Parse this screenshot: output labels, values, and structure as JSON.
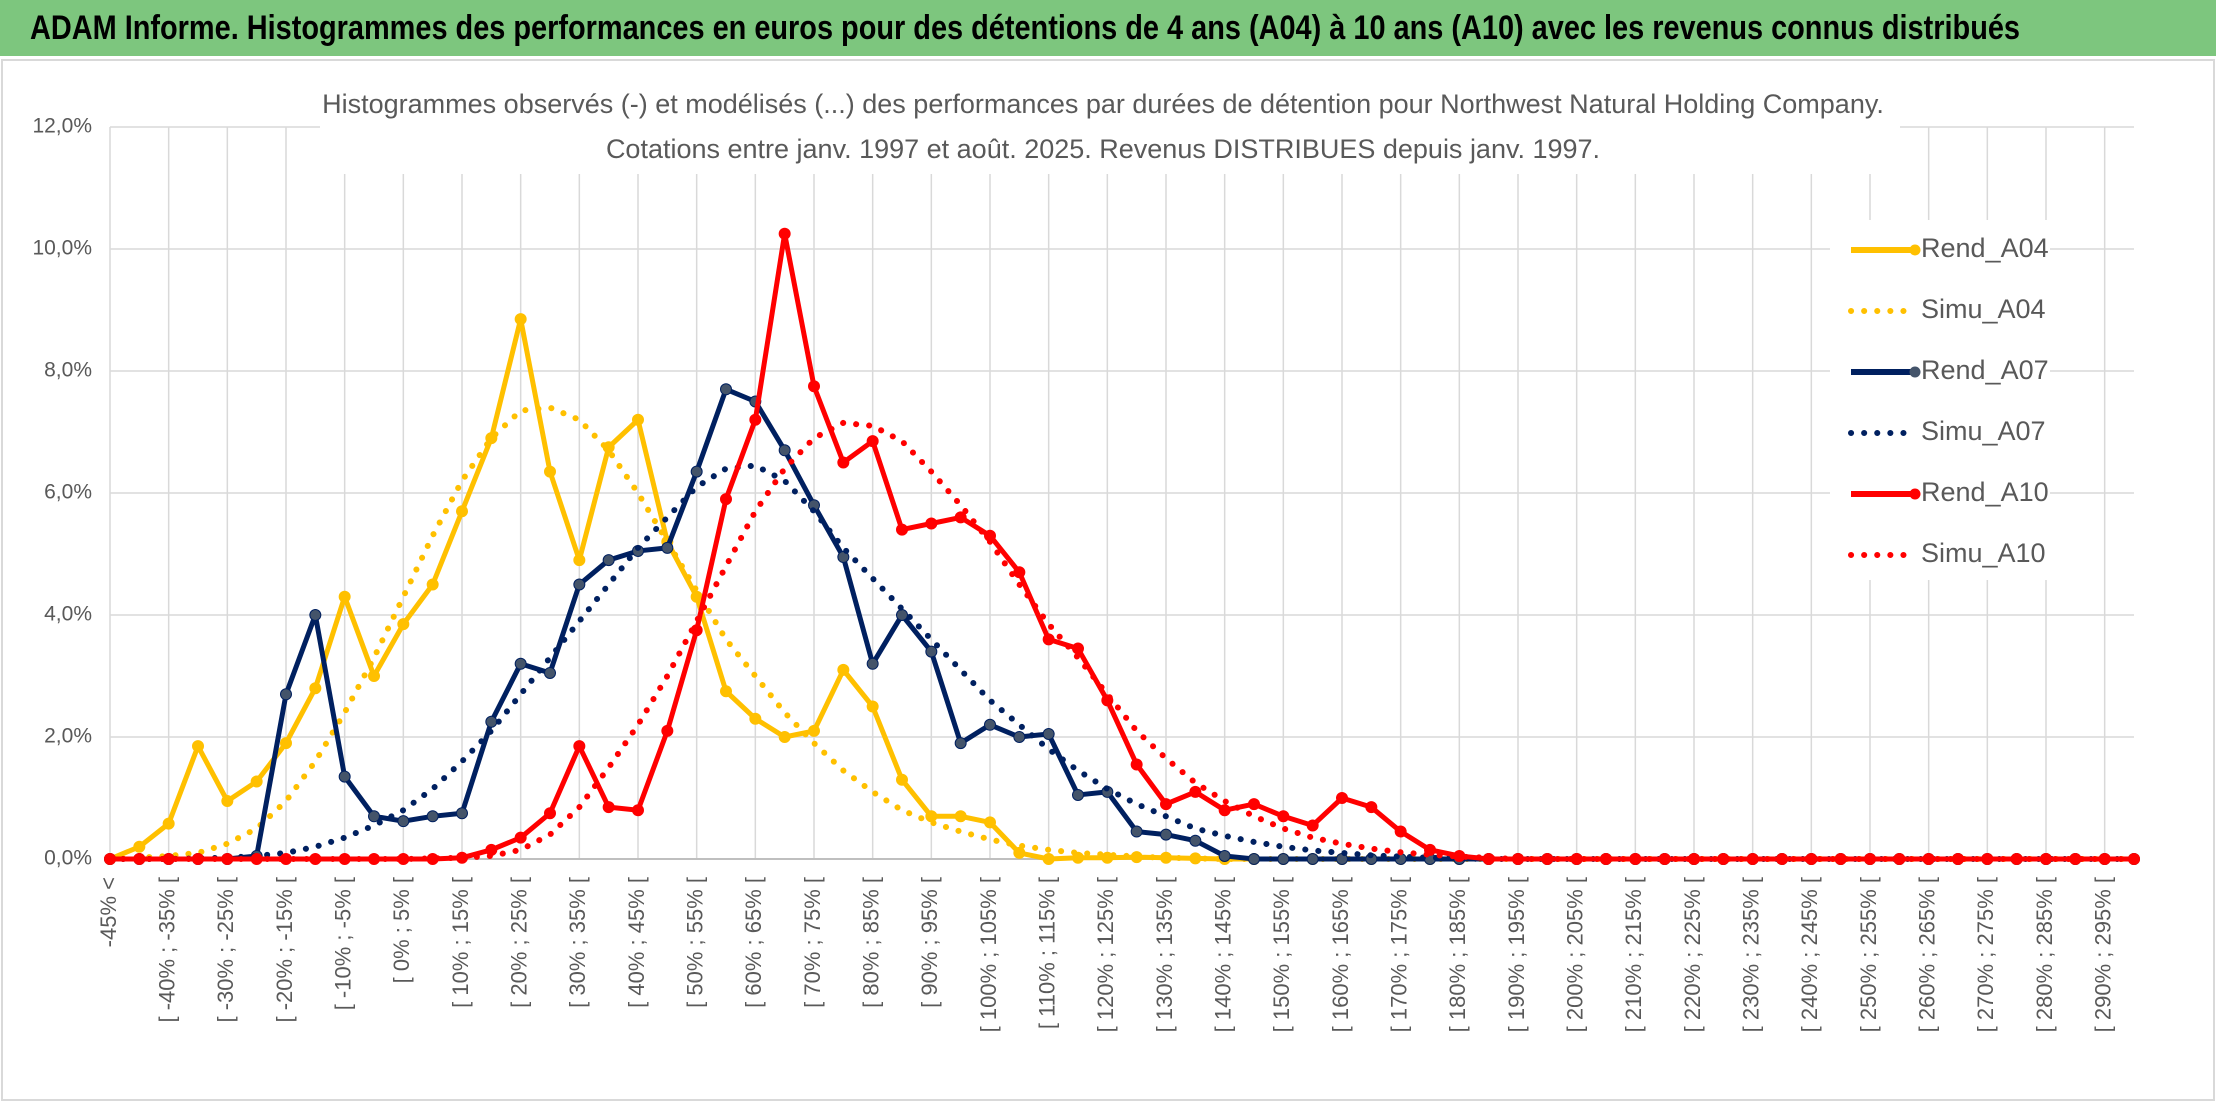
{
  "header": {
    "title": "ADAM Informe. Histogrammes des performances en euros pour des détentions de 4 ans (A04) à 10 ans (A10) avec les revenus connus distribués"
  },
  "chart_data": {
    "type": "line",
    "title": "Histogrammes observés (-) et modélisés (...) des performances par durées de détention pour Northwest Natural Holding Company.",
    "subtitle": "Cotations entre janv. 1997 et août. 2025. Revenus DISTRIBUES depuis janv. 1997.",
    "categories": [
      "-45% <",
      null,
      "[ -40% ; -35% [",
      null,
      "[ -30% ; -25% [",
      null,
      "[ -20% ; -15% [",
      null,
      "[ -10% ; -5% [",
      null,
      "[ 0% ; 5% [",
      null,
      "[ 10% ; 15% [",
      null,
      "[ 20% ; 25% [",
      null,
      "[ 30% ; 35% [",
      null,
      "[ 40% ; 45% [",
      null,
      "[ 50% ; 55% [",
      null,
      "[ 60% ; 65% [",
      null,
      "[ 70% ; 75% [",
      null,
      "[ 80% ; 85% [",
      null,
      "[ 90% ; 95% [",
      null,
      "[ 100% ; 105% [",
      null,
      "[ 110% ; 115% [",
      null,
      "[ 120% ; 125% [",
      null,
      "[ 130% ; 135% [",
      null,
      "[ 140% ; 145% [",
      null,
      "[ 150% ; 155% [",
      null,
      "[ 160% ; 165% [",
      null,
      "[ 170% ; 175% [",
      null,
      "[ 180% ; 185% [",
      null,
      "[ 190% ; 195% [",
      null,
      "[ 200% ; 205% [",
      null,
      "[ 210% ; 215% [",
      null,
      "[ 220% ; 225% [",
      null,
      "[ 230% ; 235% [",
      null,
      "[ 240% ; 245% [",
      null,
      "[ 250% ; 255% [",
      null,
      "[ 260% ; 265% [",
      null,
      "[ 270% ; 275% [",
      null,
      "[ 280% ; 285% [",
      null,
      "[ 290% ; 295% [",
      null
    ],
    "series": [
      {
        "name": "Rend_A04",
        "color": "#FFC000",
        "style": "solid",
        "values": [
          0,
          0.2,
          0.58,
          1.85,
          0.95,
          1.27,
          1.9,
          2.8,
          4.3,
          3.0,
          3.85,
          4.5,
          5.7,
          6.9,
          8.85,
          6.35,
          4.9,
          6.75,
          7.2,
          5.2,
          4.3,
          2.75,
          2.3,
          2.0,
          2.1,
          3.1,
          2.5,
          1.3,
          0.7,
          0.7,
          0.6,
          0.1,
          0,
          0.02,
          0.02,
          0.03,
          0.02,
          0.01,
          0,
          0,
          0,
          0,
          0,
          0,
          0,
          0,
          0,
          0,
          0,
          0,
          0,
          0,
          0,
          0,
          0,
          0,
          0,
          0,
          0,
          0,
          0,
          0,
          0,
          0,
          0,
          0,
          0,
          0,
          0,
          0
        ]
      },
      {
        "name": "Simu_A04",
        "color": "#FFC000",
        "style": "dotted",
        "values": [
          0,
          0.02,
          0.05,
          0.1,
          0.25,
          0.5,
          0.95,
          1.6,
          2.4,
          3.3,
          4.3,
          5.3,
          6.2,
          6.9,
          7.35,
          7.4,
          7.2,
          6.7,
          6.0,
          5.2,
          4.4,
          3.6,
          3.0,
          2.4,
          1.9,
          1.45,
          1.1,
          0.8,
          0.6,
          0.45,
          0.32,
          0.22,
          0.15,
          0.1,
          0.07,
          0.04,
          0.02,
          0.01,
          0,
          0,
          0,
          0,
          0,
          0,
          0,
          0,
          0,
          0,
          0,
          0,
          0,
          0,
          0,
          0,
          0,
          0,
          0,
          0,
          0,
          0,
          0,
          0,
          0,
          0,
          0,
          0,
          0,
          0,
          0,
          0
        ]
      },
      {
        "name": "Rend_A07",
        "color": "#002060",
        "style": "solid",
        "values": [
          0,
          0,
          0,
          0,
          0,
          0.05,
          2.7,
          4.0,
          1.35,
          0.7,
          0.62,
          0.7,
          0.75,
          2.25,
          3.2,
          3.05,
          4.5,
          4.9,
          5.05,
          5.1,
          6.35,
          7.7,
          7.5,
          6.7,
          5.8,
          4.95,
          3.2,
          4.0,
          3.4,
          1.9,
          2.2,
          2.0,
          2.05,
          1.05,
          1.1,
          0.45,
          0.4,
          0.3,
          0.05,
          0,
          0,
          0,
          0,
          0,
          0,
          0,
          0,
          0,
          0,
          0,
          0,
          0,
          0,
          0,
          0,
          0,
          0,
          0,
          0,
          0,
          0,
          0,
          0,
          0,
          0,
          0,
          0,
          0,
          0,
          0
        ]
      },
      {
        "name": "Simu_A07",
        "color": "#002060",
        "style": "dotted",
        "values": [
          0,
          0,
          0,
          0.01,
          0.02,
          0.05,
          0.1,
          0.2,
          0.35,
          0.55,
          0.8,
          1.15,
          1.6,
          2.1,
          2.7,
          3.3,
          3.9,
          4.5,
          5.1,
          5.6,
          6.1,
          6.4,
          6.45,
          6.2,
          5.7,
          5.1,
          4.6,
          4.1,
          3.6,
          3.1,
          2.6,
          2.2,
          1.8,
          1.45,
          1.15,
          0.9,
          0.7,
          0.5,
          0.38,
          0.28,
          0.2,
          0.14,
          0.1,
          0.06,
          0.04,
          0.02,
          0.01,
          0,
          0,
          0,
          0,
          0,
          0,
          0,
          0,
          0,
          0,
          0,
          0,
          0,
          0,
          0,
          0,
          0,
          0,
          0,
          0,
          0,
          0,
          0
        ]
      },
      {
        "name": "Rend_A10",
        "color": "#FF0000",
        "style": "solid",
        "values": [
          0,
          0,
          0,
          0,
          0,
          0,
          0,
          0,
          0,
          0,
          0,
          0,
          0.02,
          0.15,
          0.35,
          0.75,
          1.85,
          0.85,
          0.8,
          2.1,
          3.75,
          5.9,
          7.2,
          10.25,
          7.75,
          6.5,
          6.85,
          5.4,
          5.5,
          5.6,
          5.3,
          4.7,
          3.6,
          3.45,
          2.6,
          1.55,
          0.9,
          1.1,
          0.8,
          0.9,
          0.7,
          0.55,
          1.0,
          0.85,
          0.45,
          0.15,
          0.05,
          0,
          0,
          0,
          0,
          0,
          0,
          0,
          0,
          0,
          0,
          0,
          0,
          0,
          0,
          0,
          0,
          0,
          0,
          0,
          0,
          0,
          0,
          0
        ]
      },
      {
        "name": "Simu_A10",
        "color": "#FF0000",
        "style": "dotted",
        "values": [
          0,
          0,
          0,
          0,
          0,
          0,
          0,
          0,
          0,
          0,
          0,
          0.01,
          0.02,
          0.05,
          0.15,
          0.4,
          0.85,
          1.5,
          2.2,
          3.0,
          3.9,
          4.8,
          5.7,
          6.4,
          6.9,
          7.15,
          7.1,
          6.85,
          6.35,
          5.8,
          5.2,
          4.5,
          3.85,
          3.3,
          2.7,
          2.1,
          1.65,
          1.25,
          0.95,
          0.7,
          0.5,
          0.35,
          0.25,
          0.17,
          0.11,
          0.07,
          0.04,
          0.02,
          0,
          0,
          0,
          0,
          0,
          0,
          0,
          0,
          0,
          0,
          0,
          0,
          0,
          0,
          0,
          0,
          0,
          0,
          0,
          0,
          0,
          0
        ]
      }
    ],
    "ylim": [
      0,
      12
    ],
    "yticks": [
      {
        "value": 0,
        "label": "0,0%"
      },
      {
        "value": 2,
        "label": "2,0%"
      },
      {
        "value": 4,
        "label": "4,0%"
      },
      {
        "value": 6,
        "label": "6,0%"
      },
      {
        "value": 8,
        "label": "8,0%"
      },
      {
        "value": 10,
        "label": "10,0%"
      },
      {
        "value": 12,
        "label": "12,0%"
      }
    ],
    "grid": true,
    "legend": "right"
  }
}
